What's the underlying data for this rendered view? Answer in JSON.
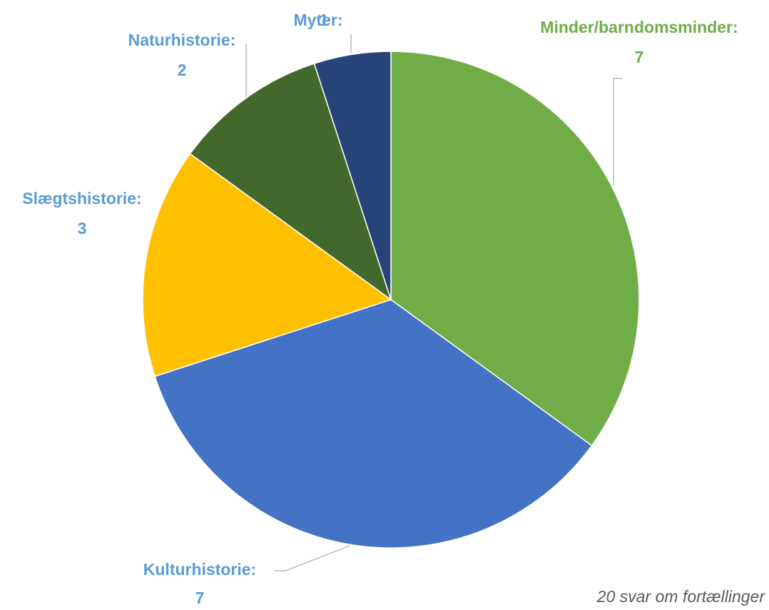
{
  "chart_data": {
    "type": "pie",
    "categories": [
      "Minder/barndomsminder:",
      "Kulturhistorie:",
      "Slægtshistorie:",
      "Naturhistorie:",
      "Myter:"
    ],
    "values": [
      7,
      7,
      3,
      2,
      1
    ],
    "colors": [
      "#70ad47",
      "#4472c4",
      "#ffc000",
      "#43682b",
      "#264478"
    ],
    "caption": "20 svar om fortællinger"
  }
}
